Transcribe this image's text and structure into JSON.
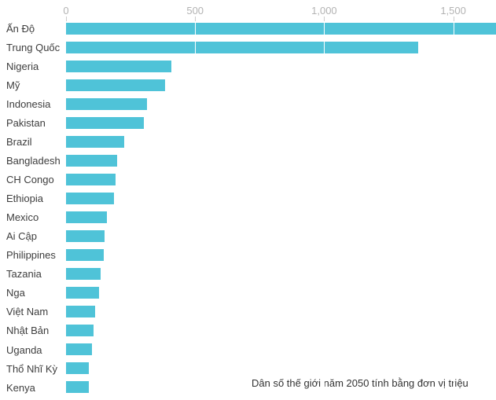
{
  "chart_data": {
    "type": "bar",
    "orientation": "horizontal",
    "caption": "Dân số thế giới năm 2050 tính bằng đơn vị triệu",
    "categories": [
      "Ấn Độ",
      "Trung Quốc",
      "Nigeria",
      "Mỹ",
      "Indonesia",
      "Pakistan",
      "Brazil",
      "Bangladesh",
      "CH Congo",
      "Ethiopia",
      "Mexico",
      "Ai Cập",
      "Philippines",
      "Tazania",
      "Nga",
      "Việt Nam",
      "Nhật Bản",
      "Uganda",
      "Thổ Nhĩ Kỳ",
      "Kenya"
    ],
    "values": [
      1665,
      1365,
      407,
      385,
      315,
      300,
      225,
      198,
      193,
      186,
      159,
      148,
      146,
      135,
      127,
      112,
      107,
      100,
      89,
      88
    ],
    "x_axis": {
      "ticks": [
        0,
        500,
        1000,
        1500
      ],
      "tick_labels": [
        "0",
        "500",
        "1,000",
        "1,500"
      ],
      "range": [
        0,
        1665
      ]
    },
    "legend": "none",
    "grid": "vertical gridlines at ticks, shown white over bars",
    "colors": {
      "bar": "#4fc3d8",
      "axis_label": "#b3b3b3",
      "tick": "#cccccc",
      "category_label": "#3d3d3d",
      "caption": "#333333",
      "background": "#ffffff"
    }
  }
}
